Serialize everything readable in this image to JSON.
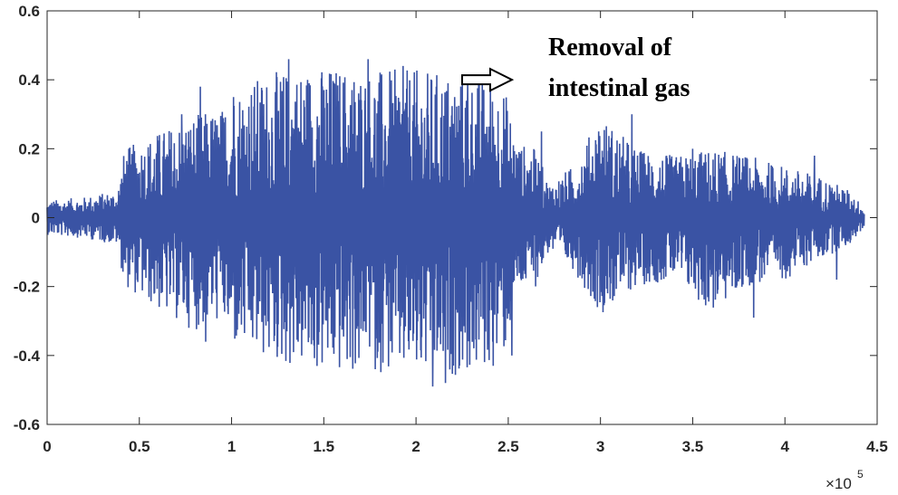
{
  "chart_data": {
    "type": "line",
    "title": "",
    "xlabel": "",
    "ylabel": "",
    "xlim": [
      0,
      450000
    ],
    "ylim": [
      -0.6,
      0.6
    ],
    "x_ticks": [
      0,
      50000,
      100000,
      150000,
      200000,
      250000,
      300000,
      350000,
      400000,
      450000
    ],
    "x_tick_labels": [
      "0",
      "0.5",
      "1",
      "1.5",
      "2",
      "2.5",
      "3",
      "3.5",
      "4",
      "4.5"
    ],
    "x_exponent_base": "×10",
    "x_exponent_power": "5",
    "y_ticks": [
      -0.6,
      -0.4,
      -0.2,
      0,
      0.2,
      0.4,
      0.6
    ],
    "y_tick_labels": [
      "-0.6",
      "-0.4",
      "-0.2",
      "0",
      "0.2",
      "0.4",
      "0.6"
    ],
    "grid": false,
    "series_color": "#3a53a4",
    "x_end": 443000,
    "envelope": {
      "x": [
        0,
        20000,
        38000,
        42000,
        60000,
        80000,
        95000,
        100000,
        120000,
        140000,
        160000,
        180000,
        200000,
        220000,
        240000,
        248000,
        255000,
        265000,
        272000,
        285000,
        300000,
        320000,
        340000,
        360000,
        380000,
        400000,
        420000,
        435000,
        443000
      ],
      "upper": [
        0.05,
        0.06,
        0.08,
        0.2,
        0.25,
        0.3,
        0.32,
        0.38,
        0.42,
        0.44,
        0.44,
        0.43,
        0.43,
        0.42,
        0.4,
        0.38,
        0.22,
        0.2,
        0.1,
        0.15,
        0.3,
        0.2,
        0.18,
        0.2,
        0.18,
        0.15,
        0.12,
        0.08,
        0.03
      ],
      "lower": [
        -0.05,
        -0.06,
        -0.08,
        -0.2,
        -0.27,
        -0.33,
        -0.3,
        -0.38,
        -0.42,
        -0.45,
        -0.46,
        -0.45,
        -0.47,
        -0.46,
        -0.45,
        -0.4,
        -0.22,
        -0.2,
        -0.1,
        -0.15,
        -0.28,
        -0.2,
        -0.18,
        -0.28,
        -0.2,
        -0.18,
        -0.12,
        -0.08,
        -0.03
      ]
    },
    "peaks": {
      "x": [
        73000,
        83000,
        86000,
        101000,
        131000,
        138000,
        174000,
        193000,
        209000,
        216000,
        228000,
        236000,
        252000,
        268000,
        299000,
        317000,
        350000,
        383000,
        416000,
        428000
      ],
      "y": [
        0.3,
        0.38,
        -0.36,
        0.35,
        0.46,
        -0.4,
        0.46,
        0.44,
        -0.49,
        -0.48,
        0.39,
        0.32,
        -0.4,
        0.25,
        0.25,
        0.3,
        0.2,
        -0.29,
        0.18,
        -0.18
      ]
    },
    "annotation": {
      "lines": [
        "Removal of",
        "intestinal gas"
      ],
      "arrow_from": [
        225000,
        0.4
      ],
      "arrow_to": [
        252000,
        0.404
      ]
    }
  }
}
